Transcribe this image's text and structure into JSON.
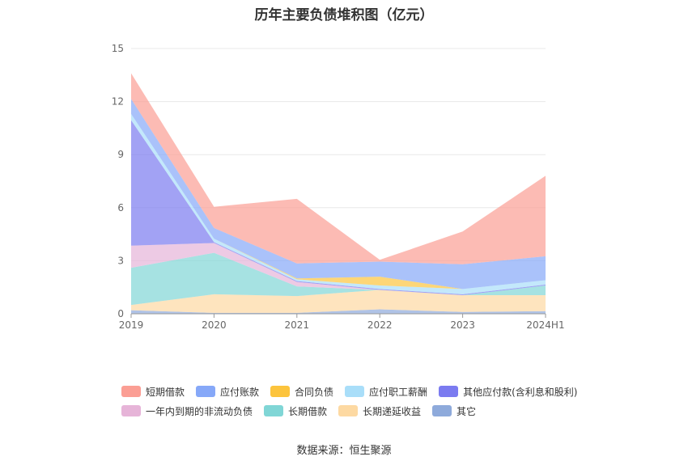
{
  "title": "历年主要负债堆积图（亿元）",
  "source": "数据来源：恒生聚源",
  "chart_data": {
    "type": "area",
    "stacked": true,
    "categories": [
      "2019",
      "2020",
      "2021",
      "2022",
      "2023",
      "2024H1"
    ],
    "ylim": [
      0,
      15
    ],
    "yticks": [
      0,
      3,
      6,
      9,
      12,
      15
    ],
    "grid": true,
    "legend_position": "bottom",
    "series": [
      {
        "name": "其它",
        "color": "#8eaadb",
        "values": [
          0.2,
          0.05,
          0.05,
          0.25,
          0.1,
          0.15
        ]
      },
      {
        "name": "长期递延收益",
        "color": "#fdd9a2",
        "values": [
          0.3,
          1.05,
          0.95,
          1.1,
          0.95,
          0.9
        ]
      },
      {
        "name": "长期借款",
        "color": "#80d6d6",
        "values": [
          2.1,
          2.35,
          0.55,
          0.0,
          0.0,
          0.55
        ]
      },
      {
        "name": "一年内到期的非流动负债",
        "color": "#e6b4d8",
        "values": [
          1.25,
          0.55,
          0.25,
          0.0,
          0.0,
          0.0
        ]
      },
      {
        "name": "其他应付款(含利息和股利)",
        "color": "#7b7bf0",
        "values": [
          7.1,
          0.05,
          0.05,
          0.05,
          0.05,
          0.05
        ]
      },
      {
        "name": "应付职工薪酬",
        "color": "#a9def9",
        "values": [
          0.35,
          0.2,
          0.1,
          0.2,
          0.3,
          0.25
        ]
      },
      {
        "name": "合同负债",
        "color": "#fcc43d",
        "values": [
          0.0,
          0.0,
          0.05,
          0.5,
          0.0,
          0.0
        ]
      },
      {
        "name": "应付账款",
        "color": "#86a8f8",
        "values": [
          0.85,
          0.6,
          0.85,
          0.85,
          1.4,
          1.35
        ]
      },
      {
        "name": "短期借款",
        "color": "#fb9e94",
        "values": [
          1.45,
          1.2,
          3.65,
          0.1,
          1.85,
          4.55
        ]
      }
    ]
  },
  "legend_rows": [
    [
      "短期借款",
      "应付账款",
      "合同负债",
      "应付职工薪酬",
      "其他应付款(含利息和股利)"
    ],
    [
      "一年内到期的非流动负债",
      "长期借款",
      "长期递延收益",
      "其它"
    ]
  ]
}
